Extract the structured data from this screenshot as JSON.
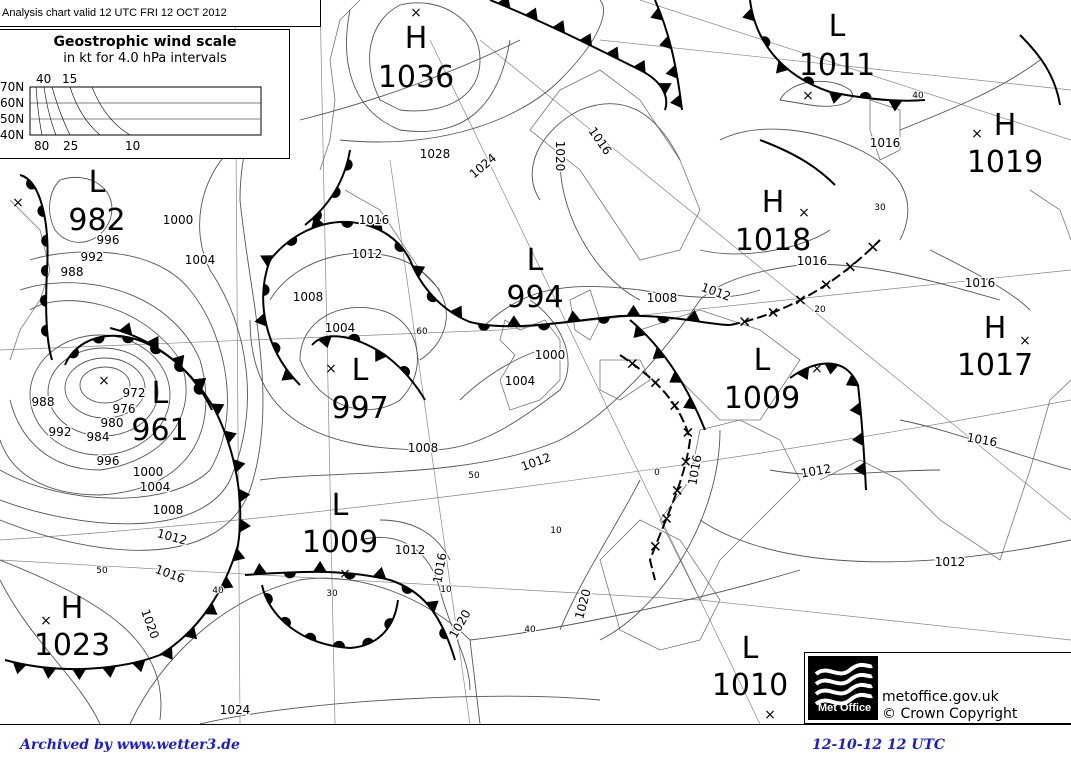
{
  "title": "Analysis chart  valid 12 UTC FRI 12  OCT 2012",
  "wind_scale": {
    "title": "Geostrophic wind scale",
    "subtitle": "in kt for 4.0 hPa intervals",
    "latitudes": [
      "70N",
      "60N",
      "50N",
      "40N"
    ],
    "top_labels": [
      "40",
      "15"
    ],
    "bottom_labels": [
      "80",
      "25",
      "10"
    ]
  },
  "systems": [
    {
      "type": "H",
      "value": "1036"
    },
    {
      "type": "L",
      "value": "1011"
    },
    {
      "type": "H",
      "value": "1019"
    },
    {
      "type": "L",
      "value": "982"
    },
    {
      "type": "H",
      "value": "1018"
    },
    {
      "type": "L",
      "value": "994"
    },
    {
      "type": "H",
      "value": "1017"
    },
    {
      "type": "L",
      "value": "961"
    },
    {
      "type": "L",
      "value": "997"
    },
    {
      "type": "L",
      "value": "1009"
    },
    {
      "type": "L",
      "value": "1009"
    },
    {
      "type": "H",
      "value": "1023"
    },
    {
      "type": "L",
      "value": "1010"
    }
  ],
  "isobar_labels": [
    "1028",
    "1024",
    "1020",
    "1016",
    "1016",
    "1016",
    "1012",
    "1008",
    "1004",
    "1000",
    "1004",
    "1008",
    "1012",
    "1016",
    "1016",
    "1012",
    "1008",
    "1016",
    "1012",
    "1012",
    "1016",
    "1020",
    "1020",
    "1020",
    "1024",
    "1016",
    "1012",
    "1008",
    "1004",
    "1000",
    "996",
    "992",
    "988",
    "984",
    "980",
    "976",
    "972",
    "988",
    "992",
    "996",
    "1000",
    "1004",
    "1012",
    "1016"
  ],
  "wind_labels": [
    "60",
    "50",
    "40",
    "30",
    "20",
    "10",
    "0",
    "40",
    "30",
    "50",
    "40",
    "10"
  ],
  "logo": {
    "text": "Met Office"
  },
  "credits": {
    "site": "metoffice.gov.uk",
    "copyright": "© Crown Copyright"
  },
  "footer": {
    "archive": "Archived by www.wetter3.de",
    "datetime": "12-10-12  12 UTC"
  },
  "colors": {
    "footer_text": "#1a1adc",
    "isobar": "#555555",
    "front": "#000000"
  }
}
